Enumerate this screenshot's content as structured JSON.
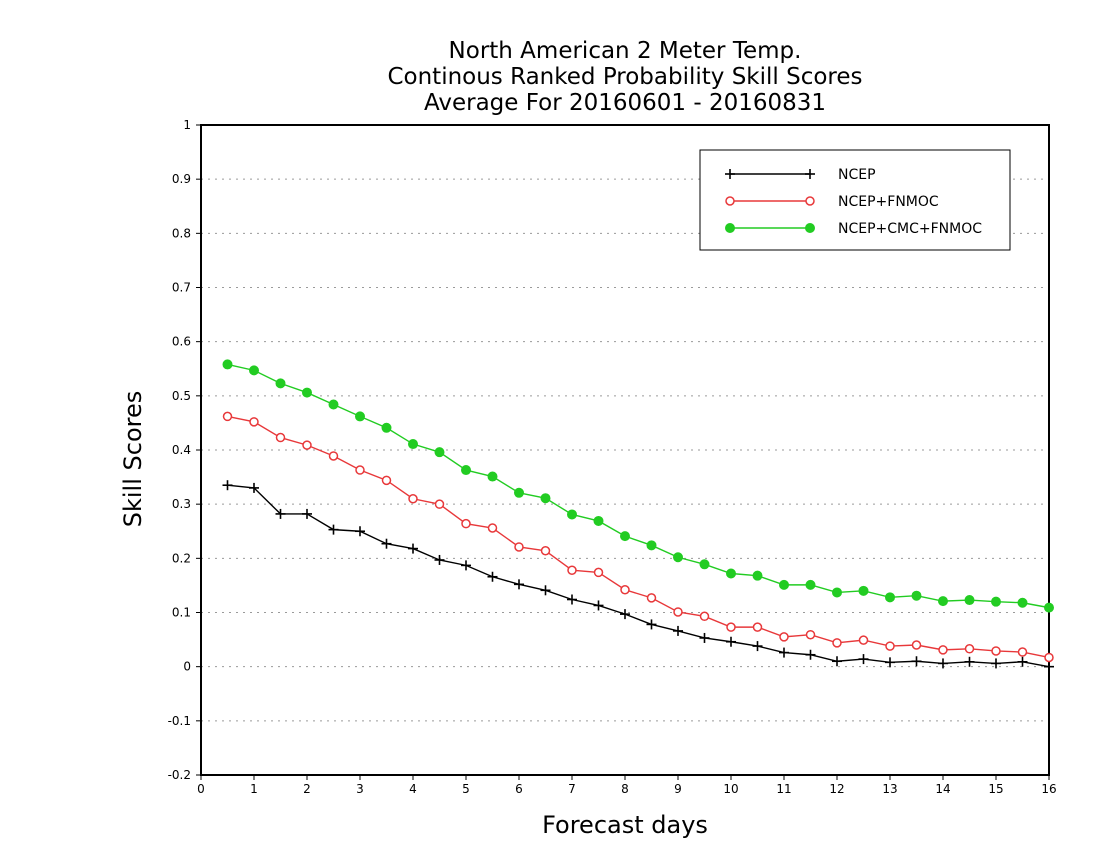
{
  "chart_data": {
    "type": "line",
    "title_lines": [
      "North American 2 Meter Temp.",
      "Continous Ranked Probability Skill Scores",
      "Average For 20160601 - 20160831"
    ],
    "xlabel": "Forecast days",
    "ylabel": "Skill Scores",
    "xlim": [
      0,
      16
    ],
    "ylim": [
      -0.2,
      1
    ],
    "xticks": [
      "0",
      "1",
      "2",
      "3",
      "4",
      "5",
      "6",
      "7",
      "8",
      "9",
      "10",
      "11",
      "12",
      "13",
      "14",
      "15",
      "16"
    ],
    "yticks": [
      "1",
      "0.9",
      "0.8",
      "0.7",
      "0.6",
      "0.5",
      "0.4",
      "0.3",
      "0.2",
      "0.1",
      "0",
      "-0.1",
      "-0.2"
    ],
    "grid": "horizontal dotted",
    "legend_position": "top-right",
    "x": [
      0.5,
      1,
      1.5,
      2,
      2.5,
      3,
      3.5,
      4,
      4.5,
      5,
      5.5,
      6,
      6.5,
      7,
      7.5,
      8,
      8.5,
      9,
      9.5,
      10,
      10.5,
      11,
      11.5,
      12,
      12.5,
      13,
      13.5,
      14,
      14.5,
      15,
      15.5,
      16
    ],
    "series": [
      {
        "name": "NCEP",
        "color": "#000000",
        "marker": "plus",
        "values": [
          0.335,
          0.33,
          0.282,
          0.282,
          0.253,
          0.25,
          0.227,
          0.218,
          0.197,
          0.187,
          0.166,
          0.152,
          0.141,
          0.124,
          0.113,
          0.097,
          0.078,
          0.066,
          0.053,
          0.046,
          0.038,
          0.026,
          0.022,
          0.01,
          0.014,
          0.008,
          0.01,
          0.006,
          0.009,
          0.006,
          0.009,
          0.0
        ]
      },
      {
        "name": "NCEP+FNMOC",
        "color": "#e8383a",
        "marker": "open-circle",
        "values": [
          0.462,
          0.452,
          0.423,
          0.409,
          0.389,
          0.363,
          0.344,
          0.31,
          0.3,
          0.264,
          0.256,
          0.221,
          0.214,
          0.178,
          0.174,
          0.142,
          0.127,
          0.101,
          0.093,
          0.073,
          0.073,
          0.055,
          0.059,
          0.044,
          0.049,
          0.038,
          0.04,
          0.031,
          0.033,
          0.029,
          0.027,
          0.017
        ]
      },
      {
        "name": "NCEP+CMC+FNMOC",
        "color": "#22cc22",
        "marker": "filled-circle",
        "values": [
          0.558,
          0.547,
          0.523,
          0.506,
          0.484,
          0.462,
          0.441,
          0.411,
          0.396,
          0.363,
          0.351,
          0.321,
          0.311,
          0.281,
          0.269,
          0.241,
          0.224,
          0.202,
          0.189,
          0.172,
          0.168,
          0.151,
          0.151,
          0.137,
          0.14,
          0.128,
          0.131,
          0.121,
          0.123,
          0.12,
          0.118,
          0.109
        ]
      }
    ]
  }
}
